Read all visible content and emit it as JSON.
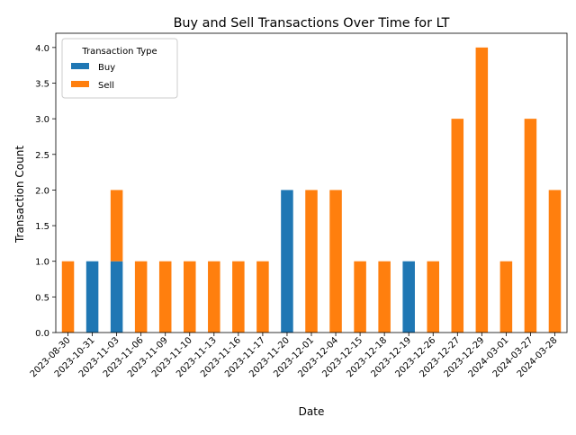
{
  "chart_data": {
    "type": "bar",
    "stacked": true,
    "title": "Buy and Sell Transactions Over Time for LT",
    "xlabel": "Date",
    "ylabel": "Transaction Count",
    "ylim": [
      0,
      4.2
    ],
    "yticks": [
      "0.0",
      "0.5",
      "1.0",
      "1.5",
      "2.0",
      "2.5",
      "3.0",
      "3.5",
      "4.0"
    ],
    "categories": [
      "2023-08-30",
      "2023-10-31",
      "2023-11-03",
      "2023-11-06",
      "2023-11-09",
      "2023-11-10",
      "2023-11-13",
      "2023-11-16",
      "2023-11-17",
      "2023-11-20",
      "2023-12-01",
      "2023-12-04",
      "2023-12-15",
      "2023-12-18",
      "2023-12-19",
      "2023-12-26",
      "2023-12-27",
      "2023-12-29",
      "2024-03-01",
      "2024-03-27",
      "2024-03-28"
    ],
    "series": [
      {
        "name": "Buy",
        "color": "#1f77b4",
        "values": [
          0,
          1,
          1,
          0,
          0,
          0,
          0,
          0,
          0,
          2,
          0,
          0,
          0,
          0,
          1,
          0,
          0,
          0,
          0,
          0,
          0
        ]
      },
      {
        "name": "Sell",
        "color": "#ff7f0e",
        "values": [
          1,
          0,
          1,
          1,
          1,
          1,
          1,
          1,
          1,
          0,
          2,
          2,
          1,
          1,
          0,
          1,
          3,
          4,
          1,
          3,
          2
        ]
      }
    ],
    "legend": {
      "title": "Transaction Type",
      "position": "top-left"
    },
    "grid": false
  }
}
